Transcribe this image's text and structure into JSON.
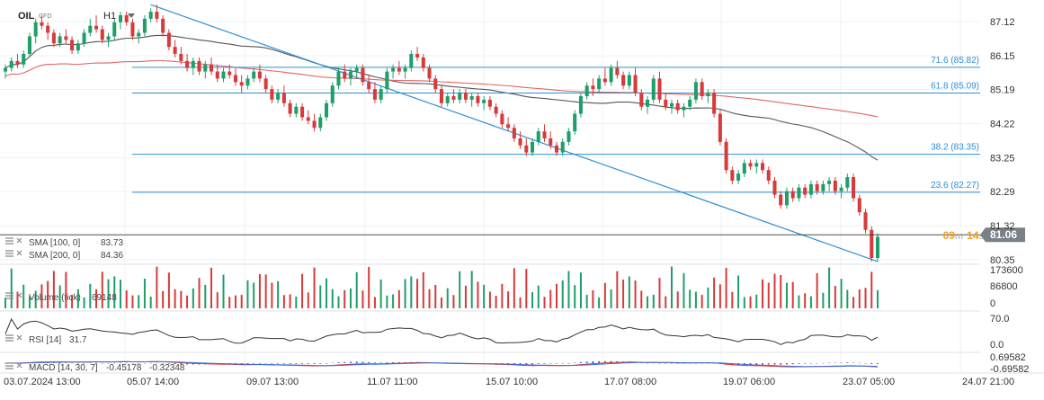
{
  "header": {
    "symbol": "OIL",
    "instrument_type": "CFD",
    "timeframe": "H1"
  },
  "chart_data": {
    "type": "candlestick",
    "y_ticks": [
      "87.12",
      "86.15",
      "85.19",
      "84.22",
      "83.25",
      "82.29",
      "81.32",
      "80.35"
    ],
    "y_range": [
      80.1,
      87.7
    ],
    "x_ticks": [
      "03.07.2024 13:00",
      "05.07 14:00",
      "09.07 13:00",
      "11.07 11:00",
      "15.07 10:00",
      "17.07 08:00",
      "19.07 06:00",
      "23.07 05:00",
      "24.07 21:00"
    ],
    "candles_ohlc": [
      [
        85.7,
        85.9,
        85.5,
        85.8
      ],
      [
        85.8,
        86.1,
        85.7,
        86.0
      ],
      [
        86.0,
        86.2,
        85.8,
        85.9
      ],
      [
        85.9,
        86.3,
        85.8,
        86.2
      ],
      [
        86.2,
        86.8,
        86.1,
        86.7
      ],
      [
        86.7,
        87.2,
        86.5,
        87.1
      ],
      [
        87.1,
        87.3,
        86.9,
        87.0
      ],
      [
        87.0,
        87.1,
        86.6,
        86.8
      ],
      [
        86.8,
        86.9,
        86.4,
        86.5
      ],
      [
        86.5,
        86.8,
        86.4,
        86.7
      ],
      [
        86.7,
        86.9,
        86.5,
        86.6
      ],
      [
        86.6,
        86.7,
        86.2,
        86.3
      ],
      [
        86.3,
        86.6,
        86.2,
        86.5
      ],
      [
        86.5,
        86.9,
        86.4,
        86.8
      ],
      [
        86.8,
        87.2,
        86.7,
        87.0
      ],
      [
        87.0,
        87.3,
        86.8,
        86.9
      ],
      [
        86.9,
        87.0,
        86.5,
        86.6
      ],
      [
        86.6,
        86.8,
        86.4,
        86.7
      ],
      [
        86.7,
        87.2,
        86.6,
        87.1
      ],
      [
        87.1,
        87.4,
        86.9,
        87.3
      ],
      [
        87.3,
        87.4,
        87.0,
        87.1
      ],
      [
        87.1,
        87.2,
        86.6,
        86.7
      ],
      [
        86.7,
        86.9,
        86.5,
        86.8
      ],
      [
        86.8,
        87.3,
        86.7,
        87.2
      ],
      [
        87.2,
        87.5,
        87.1,
        87.4
      ],
      [
        87.4,
        87.6,
        87.1,
        87.2
      ],
      [
        87.2,
        87.3,
        86.7,
        86.8
      ],
      [
        86.8,
        86.9,
        86.3,
        86.4
      ],
      [
        86.4,
        86.6,
        86.1,
        86.2
      ],
      [
        86.2,
        86.4,
        85.9,
        86.0
      ],
      [
        86.0,
        86.2,
        85.7,
        85.8
      ],
      [
        85.8,
        86.1,
        85.6,
        86.0
      ],
      [
        86.0,
        86.1,
        85.6,
        85.7
      ],
      [
        85.7,
        86.0,
        85.5,
        85.9
      ],
      [
        85.9,
        86.1,
        85.6,
        85.7
      ],
      [
        85.7,
        85.9,
        85.4,
        85.5
      ],
      [
        85.5,
        85.8,
        85.4,
        85.7
      ],
      [
        85.7,
        85.9,
        85.5,
        85.6
      ],
      [
        85.6,
        85.8,
        85.3,
        85.4
      ],
      [
        85.4,
        85.6,
        85.1,
        85.3
      ],
      [
        85.3,
        85.6,
        85.2,
        85.5
      ],
      [
        85.5,
        85.8,
        85.4,
        85.7
      ],
      [
        85.7,
        85.9,
        85.4,
        85.5
      ],
      [
        85.5,
        85.6,
        85.1,
        85.2
      ],
      [
        85.2,
        85.3,
        84.8,
        84.9
      ],
      [
        84.9,
        85.2,
        84.8,
        85.1
      ],
      [
        85.1,
        85.3,
        84.7,
        84.8
      ],
      [
        84.8,
        84.9,
        84.4,
        84.5
      ],
      [
        84.5,
        84.8,
        84.4,
        84.7
      ],
      [
        84.7,
        84.8,
        84.3,
        84.4
      ],
      [
        84.4,
        84.6,
        84.2,
        84.3
      ],
      [
        84.3,
        84.5,
        84.0,
        84.1
      ],
      [
        84.1,
        84.5,
        84.0,
        84.4
      ],
      [
        84.4,
        84.9,
        84.3,
        84.8
      ],
      [
        84.8,
        85.4,
        84.7,
        85.3
      ],
      [
        85.3,
        85.8,
        85.2,
        85.7
      ],
      [
        85.7,
        85.9,
        85.4,
        85.5
      ],
      [
        85.5,
        85.8,
        85.3,
        85.7
      ],
      [
        85.7,
        85.9,
        85.5,
        85.8
      ],
      [
        85.8,
        85.9,
        85.3,
        85.4
      ],
      [
        85.4,
        85.6,
        85.1,
        85.2
      ],
      [
        85.2,
        85.4,
        84.8,
        84.9
      ],
      [
        84.9,
        85.3,
        84.8,
        85.2
      ],
      [
        85.2,
        85.8,
        85.1,
        85.7
      ],
      [
        85.7,
        85.9,
        85.5,
        85.8
      ],
      [
        85.8,
        86.0,
        85.6,
        85.7
      ],
      [
        85.7,
        85.9,
        85.5,
        85.8
      ],
      [
        85.8,
        86.3,
        85.7,
        86.2
      ],
      [
        86.2,
        86.4,
        86.0,
        86.1
      ],
      [
        86.1,
        86.2,
        85.7,
        85.8
      ],
      [
        85.8,
        85.9,
        85.4,
        85.5
      ],
      [
        85.5,
        85.6,
        85.1,
        85.2
      ],
      [
        85.2,
        85.3,
        84.7,
        84.8
      ],
      [
        84.8,
        85.1,
        84.7,
        85.0
      ],
      [
        85.0,
        85.2,
        84.8,
        84.9
      ],
      [
        84.9,
        85.2,
        84.8,
        85.1
      ],
      [
        85.1,
        85.2,
        84.8,
        84.9
      ],
      [
        84.9,
        85.1,
        84.7,
        85.0
      ],
      [
        85.0,
        85.1,
        84.7,
        84.8
      ],
      [
        84.8,
        85.0,
        84.6,
        84.9
      ],
      [
        84.9,
        85.0,
        84.6,
        84.7
      ],
      [
        84.7,
        84.8,
        84.4,
        84.5
      ],
      [
        84.5,
        84.6,
        84.1,
        84.2
      ],
      [
        84.2,
        84.4,
        84.0,
        84.1
      ],
      [
        84.1,
        84.2,
        83.7,
        83.8
      ],
      [
        83.8,
        84.0,
        83.5,
        83.6
      ],
      [
        83.6,
        83.8,
        83.3,
        83.4
      ],
      [
        83.4,
        83.8,
        83.3,
        83.7
      ],
      [
        83.7,
        84.1,
        83.6,
        84.0
      ],
      [
        84.0,
        84.2,
        83.7,
        83.8
      ],
      [
        83.8,
        84.0,
        83.5,
        83.6
      ],
      [
        83.6,
        83.7,
        83.3,
        83.4
      ],
      [
        83.4,
        83.8,
        83.3,
        83.7
      ],
      [
        83.7,
        84.1,
        83.6,
        84.0
      ],
      [
        84.0,
        84.6,
        83.9,
        84.5
      ],
      [
        84.5,
        85.1,
        84.4,
        85.0
      ],
      [
        85.0,
        85.4,
        84.9,
        85.3
      ],
      [
        85.3,
        85.5,
        85.0,
        85.2
      ],
      [
        85.2,
        85.6,
        85.1,
        85.5
      ],
      [
        85.5,
        85.8,
        85.3,
        85.4
      ],
      [
        85.4,
        85.9,
        85.3,
        85.8
      ],
      [
        85.8,
        86.0,
        85.5,
        85.6
      ],
      [
        85.6,
        85.7,
        85.2,
        85.3
      ],
      [
        85.3,
        85.7,
        85.2,
        85.6
      ],
      [
        85.6,
        85.8,
        85.0,
        85.1
      ],
      [
        85.1,
        85.2,
        84.6,
        84.7
      ],
      [
        84.7,
        85.0,
        84.5,
        84.9
      ],
      [
        84.9,
        85.6,
        84.8,
        85.5
      ],
      [
        85.5,
        85.7,
        84.8,
        84.9
      ],
      [
        84.9,
        85.1,
        84.6,
        84.7
      ],
      [
        84.7,
        84.9,
        84.5,
        84.8
      ],
      [
        84.8,
        84.9,
        84.5,
        84.6
      ],
      [
        84.6,
        84.8,
        84.4,
        84.7
      ],
      [
        84.7,
        85.0,
        84.6,
        84.9
      ],
      [
        84.9,
        85.5,
        84.8,
        85.4
      ],
      [
        85.4,
        85.5,
        84.9,
        85.0
      ],
      [
        85.0,
        85.2,
        84.8,
        85.1
      ],
      [
        85.1,
        85.2,
        84.4,
        84.5
      ],
      [
        84.5,
        84.6,
        83.6,
        83.7
      ],
      [
        83.7,
        83.8,
        82.8,
        82.9
      ],
      [
        82.9,
        83.0,
        82.5,
        82.6
      ],
      [
        82.6,
        82.9,
        82.5,
        82.8
      ],
      [
        82.8,
        83.2,
        82.7,
        83.1
      ],
      [
        83.1,
        83.2,
        82.9,
        83.0
      ],
      [
        83.0,
        83.2,
        82.8,
        83.1
      ],
      [
        83.1,
        83.2,
        82.8,
        82.9
      ],
      [
        82.9,
        83.0,
        82.5,
        82.6
      ],
      [
        82.6,
        82.7,
        82.1,
        82.2
      ],
      [
        82.2,
        82.3,
        81.8,
        81.9
      ],
      [
        81.9,
        82.4,
        81.8,
        82.3
      ],
      [
        82.3,
        82.4,
        82.0,
        82.1
      ],
      [
        82.1,
        82.5,
        82.0,
        82.4
      ],
      [
        82.4,
        82.5,
        82.1,
        82.2
      ],
      [
        82.2,
        82.6,
        82.1,
        82.5
      ],
      [
        82.5,
        82.6,
        82.2,
        82.3
      ],
      [
        82.3,
        82.6,
        82.2,
        82.5
      ],
      [
        82.5,
        82.7,
        82.3,
        82.6
      ],
      [
        82.6,
        82.7,
        82.2,
        82.3
      ],
      [
        82.3,
        82.5,
        82.1,
        82.4
      ],
      [
        82.4,
        82.8,
        82.3,
        82.7
      ],
      [
        82.7,
        82.8,
        82.0,
        82.1
      ],
      [
        82.1,
        82.2,
        81.6,
        81.7
      ],
      [
        81.7,
        81.8,
        81.1,
        81.2
      ],
      [
        81.2,
        81.3,
        80.3,
        80.4
      ],
      [
        80.4,
        81.1,
        80.3,
        81.0
      ]
    ],
    "moving_averages": [
      {
        "name": "SMA [100, 0]",
        "value": "83.73",
        "color": "#555555"
      },
      {
        "name": "SMA [200, 0]",
        "value": "84.36",
        "color": "#e06666"
      }
    ],
    "fibonacci_levels": [
      {
        "label": "71.6 (85.82)",
        "value": 85.82
      },
      {
        "label": "61.8 (85.09)",
        "value": 85.09
      },
      {
        "label": "38.2 (83.35)",
        "value": 83.35
      },
      {
        "label": "23.6 (82.27)",
        "value": 82.27
      }
    ],
    "current_price": "81.06",
    "countdown": {
      "minutes": "09",
      "minute_unit": "m",
      "seconds": "14",
      "second_unit": "s"
    },
    "volume": {
      "label": "Volume (tick)",
      "value": "69148",
      "y_ticks": [
        "173600",
        "86800",
        "0"
      ]
    },
    "rsi": {
      "label": "RSI [14]",
      "value": "31.7",
      "y_ticks": [
        "70.0",
        "0.0"
      ]
    },
    "macd": {
      "label": "MACD [14, 30, 7]",
      "value1": "-0.45178",
      "value2": "-0.32348",
      "y_ticks": [
        "0.69582",
        "-0.69582"
      ]
    },
    "colors": {
      "bull": "#1e9e6b",
      "bear": "#d83a3a",
      "fib": "#2b8fd6",
      "sma100": "#555555",
      "sma200": "#e06666",
      "price_tag": "#7a8088",
      "countdown": "#f0a020"
    }
  }
}
